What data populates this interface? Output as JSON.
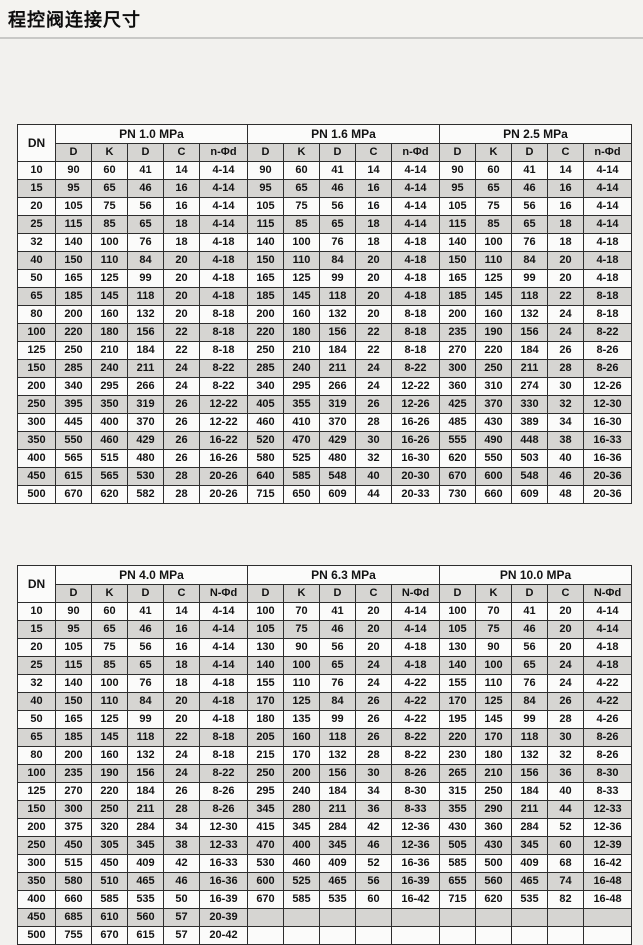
{
  "page": {
    "title": "程控阀连接尺寸"
  },
  "colors": {
    "row_gray": "#d6d5d2",
    "row_white": "#fbfbfa",
    "border": "#2e2e2e",
    "page_background": "#f2f1ee"
  },
  "tables": [
    {
      "dn_header": "DN",
      "groups": [
        "PN 1.0 MPa",
        "PN 1.6 MPa",
        "PN 2.5 MPa"
      ],
      "sub_headers": [
        "D",
        "K",
        "D",
        "C",
        "n-Φd"
      ],
      "rows": [
        {
          "dn": "10",
          "cells": [
            "90",
            "60",
            "41",
            "14",
            "4-14",
            "90",
            "60",
            "41",
            "14",
            "4-14",
            "90",
            "60",
            "41",
            "14",
            "4-14"
          ]
        },
        {
          "dn": "15",
          "cells": [
            "95",
            "65",
            "46",
            "16",
            "4-14",
            "95",
            "65",
            "46",
            "16",
            "4-14",
            "95",
            "65",
            "46",
            "16",
            "4-14"
          ]
        },
        {
          "dn": "20",
          "cells": [
            "105",
            "75",
            "56",
            "16",
            "4-14",
            "105",
            "75",
            "56",
            "16",
            "4-14",
            "105",
            "75",
            "56",
            "16",
            "4-14"
          ]
        },
        {
          "dn": "25",
          "cells": [
            "115",
            "85",
            "65",
            "18",
            "4-14",
            "115",
            "85",
            "65",
            "18",
            "4-14",
            "115",
            "85",
            "65",
            "18",
            "4-14"
          ]
        },
        {
          "dn": "32",
          "cells": [
            "140",
            "100",
            "76",
            "18",
            "4-18",
            "140",
            "100",
            "76",
            "18",
            "4-18",
            "140",
            "100",
            "76",
            "18",
            "4-18"
          ]
        },
        {
          "dn": "40",
          "cells": [
            "150",
            "110",
            "84",
            "20",
            "4-18",
            "150",
            "110",
            "84",
            "20",
            "4-18",
            "150",
            "110",
            "84",
            "20",
            "4-18"
          ]
        },
        {
          "dn": "50",
          "cells": [
            "165",
            "125",
            "99",
            "20",
            "4-18",
            "165",
            "125",
            "99",
            "20",
            "4-18",
            "165",
            "125",
            "99",
            "20",
            "4-18"
          ]
        },
        {
          "dn": "65",
          "cells": [
            "185",
            "145",
            "118",
            "20",
            "4-18",
            "185",
            "145",
            "118",
            "20",
            "4-18",
            "185",
            "145",
            "118",
            "22",
            "8-18"
          ]
        },
        {
          "dn": "80",
          "cells": [
            "200",
            "160",
            "132",
            "20",
            "8-18",
            "200",
            "160",
            "132",
            "20",
            "8-18",
            "200",
            "160",
            "132",
            "24",
            "8-18"
          ]
        },
        {
          "dn": "100",
          "cells": [
            "220",
            "180",
            "156",
            "22",
            "8-18",
            "220",
            "180",
            "156",
            "22",
            "8-18",
            "235",
            "190",
            "156",
            "24",
            "8-22"
          ]
        },
        {
          "dn": "125",
          "cells": [
            "250",
            "210",
            "184",
            "22",
            "8-18",
            "250",
            "210",
            "184",
            "22",
            "8-18",
            "270",
            "220",
            "184",
            "26",
            "8-26"
          ]
        },
        {
          "dn": "150",
          "cells": [
            "285",
            "240",
            "211",
            "24",
            "8-22",
            "285",
            "240",
            "211",
            "24",
            "8-22",
            "300",
            "250",
            "211",
            "28",
            "8-26"
          ]
        },
        {
          "dn": "200",
          "cells": [
            "340",
            "295",
            "266",
            "24",
            "8-22",
            "340",
            "295",
            "266",
            "24",
            "12-22",
            "360",
            "310",
            "274",
            "30",
            "12-26"
          ]
        },
        {
          "dn": "250",
          "cells": [
            "395",
            "350",
            "319",
            "26",
            "12-22",
            "405",
            "355",
            "319",
            "26",
            "12-26",
            "425",
            "370",
            "330",
            "32",
            "12-30"
          ]
        },
        {
          "dn": "300",
          "cells": [
            "445",
            "400",
            "370",
            "26",
            "12-22",
            "460",
            "410",
            "370",
            "28",
            "16-26",
            "485",
            "430",
            "389",
            "34",
            "16-30"
          ]
        },
        {
          "dn": "350",
          "cells": [
            "550",
            "460",
            "429",
            "26",
            "16-22",
            "520",
            "470",
            "429",
            "30",
            "16-26",
            "555",
            "490",
            "448",
            "38",
            "16-33"
          ]
        },
        {
          "dn": "400",
          "cells": [
            "565",
            "515",
            "480",
            "26",
            "16-26",
            "580",
            "525",
            "480",
            "32",
            "16-30",
            "620",
            "550",
            "503",
            "40",
            "16-36"
          ]
        },
        {
          "dn": "450",
          "cells": [
            "615",
            "565",
            "530",
            "28",
            "20-26",
            "640",
            "585",
            "548",
            "40",
            "20-30",
            "670",
            "600",
            "548",
            "46",
            "20-36"
          ]
        },
        {
          "dn": "500",
          "cells": [
            "670",
            "620",
            "582",
            "28",
            "20-26",
            "715",
            "650",
            "609",
            "44",
            "20-33",
            "730",
            "660",
            "609",
            "48",
            "20-36"
          ]
        }
      ]
    },
    {
      "dn_header": "DN",
      "groups": [
        "PN 4.0 MPa",
        "PN 6.3 MPa",
        "PN 10.0 MPa"
      ],
      "sub_headers": [
        "D",
        "K",
        "D",
        "C",
        "N-Φd"
      ],
      "rows": [
        {
          "dn": "10",
          "cells": [
            "90",
            "60",
            "41",
            "14",
            "4-14",
            "100",
            "70",
            "41",
            "20",
            "4-14",
            "100",
            "70",
            "41",
            "20",
            "4-14"
          ]
        },
        {
          "dn": "15",
          "cells": [
            "95",
            "65",
            "46",
            "16",
            "4-14",
            "105",
            "75",
            "46",
            "20",
            "4-14",
            "105",
            "75",
            "46",
            "20",
            "4-14"
          ]
        },
        {
          "dn": "20",
          "cells": [
            "105",
            "75",
            "56",
            "16",
            "4-14",
            "130",
            "90",
            "56",
            "20",
            "4-18",
            "130",
            "90",
            "56",
            "20",
            "4-18"
          ]
        },
        {
          "dn": "25",
          "cells": [
            "115",
            "85",
            "65",
            "18",
            "4-14",
            "140",
            "100",
            "65",
            "24",
            "4-18",
            "140",
            "100",
            "65",
            "24",
            "4-18"
          ]
        },
        {
          "dn": "32",
          "cells": [
            "140",
            "100",
            "76",
            "18",
            "4-18",
            "155",
            "110",
            "76",
            "24",
            "4-22",
            "155",
            "110",
            "76",
            "24",
            "4-22"
          ]
        },
        {
          "dn": "40",
          "cells": [
            "150",
            "110",
            "84",
            "20",
            "4-18",
            "170",
            "125",
            "84",
            "26",
            "4-22",
            "170",
            "125",
            "84",
            "26",
            "4-22"
          ]
        },
        {
          "dn": "50",
          "cells": [
            "165",
            "125",
            "99",
            "20",
            "4-18",
            "180",
            "135",
            "99",
            "26",
            "4-22",
            "195",
            "145",
            "99",
            "28",
            "4-26"
          ]
        },
        {
          "dn": "65",
          "cells": [
            "185",
            "145",
            "118",
            "22",
            "8-18",
            "205",
            "160",
            "118",
            "26",
            "8-22",
            "220",
            "170",
            "118",
            "30",
            "8-26"
          ]
        },
        {
          "dn": "80",
          "cells": [
            "200",
            "160",
            "132",
            "24",
            "8-18",
            "215",
            "170",
            "132",
            "28",
            "8-22",
            "230",
            "180",
            "132",
            "32",
            "8-26"
          ]
        },
        {
          "dn": "100",
          "cells": [
            "235",
            "190",
            "156",
            "24",
            "8-22",
            "250",
            "200",
            "156",
            "30",
            "8-26",
            "265",
            "210",
            "156",
            "36",
            "8-30"
          ]
        },
        {
          "dn": "125",
          "cells": [
            "270",
            "220",
            "184",
            "26",
            "8-26",
            "295",
            "240",
            "184",
            "34",
            "8-30",
            "315",
            "250",
            "184",
            "40",
            "8-33"
          ]
        },
        {
          "dn": "150",
          "cells": [
            "300",
            "250",
            "211",
            "28",
            "8-26",
            "345",
            "280",
            "211",
            "36",
            "8-33",
            "355",
            "290",
            "211",
            "44",
            "12-33"
          ]
        },
        {
          "dn": "200",
          "cells": [
            "375",
            "320",
            "284",
            "34",
            "12-30",
            "415",
            "345",
            "284",
            "42",
            "12-36",
            "430",
            "360",
            "284",
            "52",
            "12-36"
          ]
        },
        {
          "dn": "250",
          "cells": [
            "450",
            "305",
            "345",
            "38",
            "12-33",
            "470",
            "400",
            "345",
            "46",
            "12-36",
            "505",
            "430",
            "345",
            "60",
            "12-39"
          ]
        },
        {
          "dn": "300",
          "cells": [
            "515",
            "450",
            "409",
            "42",
            "16-33",
            "530",
            "460",
            "409",
            "52",
            "16-36",
            "585",
            "500",
            "409",
            "68",
            "16-42"
          ]
        },
        {
          "dn": "350",
          "cells": [
            "580",
            "510",
            "465",
            "46",
            "16-36",
            "600",
            "525",
            "465",
            "56",
            "16-39",
            "655",
            "560",
            "465",
            "74",
            "16-48"
          ]
        },
        {
          "dn": "400",
          "cells": [
            "660",
            "585",
            "535",
            "50",
            "16-39",
            "670",
            "585",
            "535",
            "60",
            "16-42",
            "715",
            "620",
            "535",
            "82",
            "16-48"
          ]
        },
        {
          "dn": "450",
          "cells": [
            "685",
            "610",
            "560",
            "57",
            "20-39",
            "",
            "",
            "",
            "",
            "",
            "",
            "",
            "",
            "",
            ""
          ]
        },
        {
          "dn": "500",
          "cells": [
            "755",
            "670",
            "615",
            "57",
            "20-42",
            "",
            "",
            "",
            "",
            "",
            "",
            "",
            "",
            "",
            ""
          ]
        }
      ]
    }
  ]
}
